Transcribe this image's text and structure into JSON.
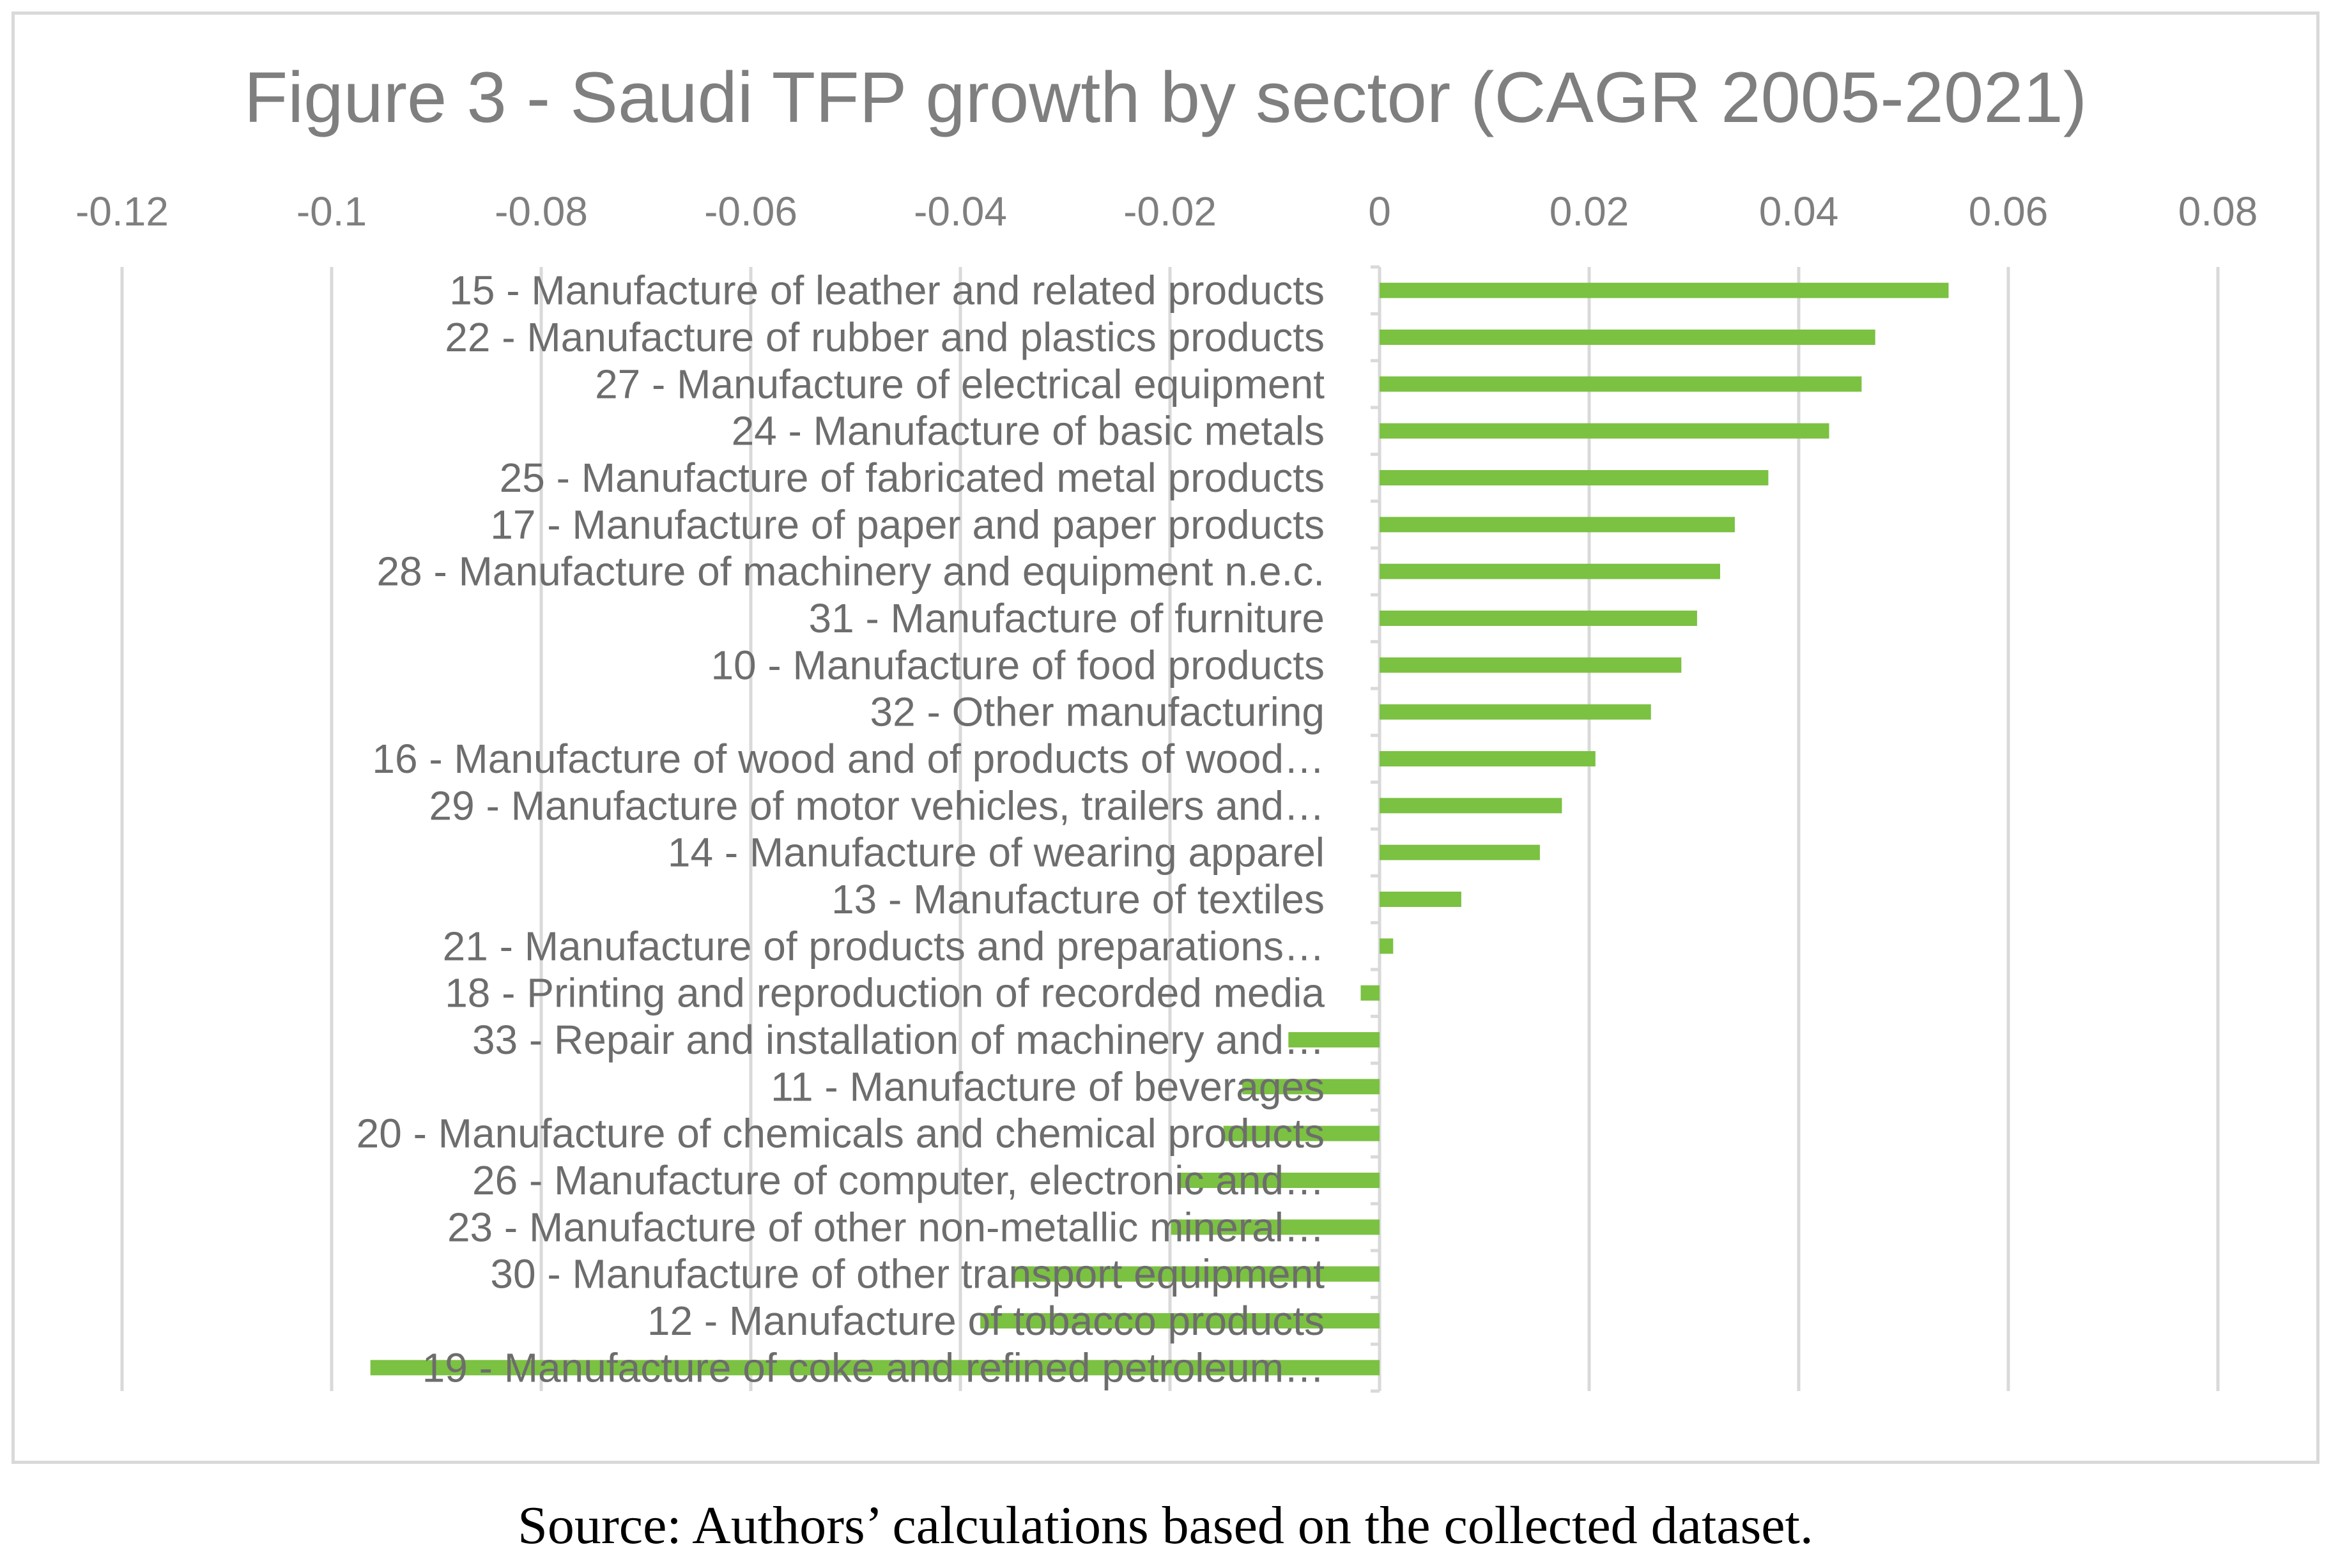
{
  "colors": {
    "bar": "#7bc142",
    "grid": "#d9d9d9",
    "text": "#7f7f7f"
  },
  "chart_data": {
    "type": "bar",
    "orientation": "horizontal",
    "title": "Figure 3 - Saudi TFP growth by sector (CAGR 2005-2021)",
    "xlim": [
      -0.12,
      0.08
    ],
    "x_ticks": [
      "-0.12",
      "-0.1",
      "-0.08",
      "-0.06",
      "-0.04",
      "-0.02",
      "0",
      "0.02",
      "0.04",
      "0.06",
      "0.08"
    ],
    "grid": true,
    "legend": "none",
    "categories": [
      "15 - Manufacture of leather and related products",
      "22 - Manufacture of rubber and plastics products",
      "27 - Manufacture of electrical equipment",
      "24 - Manufacture of basic metals",
      "25 - Manufacture of fabricated metal products",
      "17 - Manufacture of paper and paper products",
      "28 - Manufacture of machinery and equipment n.e.c.",
      "31 - Manufacture of furniture",
      "10 - Manufacture of food products",
      "32 - Other manufacturing",
      "16 - Manufacture of wood and of products of wood…",
      "29 - Manufacture of motor vehicles, trailers and…",
      "14 - Manufacture of wearing apparel",
      "13 - Manufacture of textiles",
      "21 - Manufacture of products and preparations…",
      "18 - Printing and reproduction of recorded media",
      "33 - Repair and installation of machinery and…",
      "11 - Manufacture of beverages",
      "20 - Manufacture of chemicals and chemical products",
      "26 - Manufacture of computer, electronic and…",
      "23 - Manufacture of other non-metallic mineral…",
      "30 - Manufacture of other transport equipment",
      "12 - Manufacture of tobacco products",
      "19 - Manufacture of coke and refined petroleum…"
    ],
    "values": [
      0.0543,
      0.0473,
      0.046,
      0.0429,
      0.0371,
      0.0339,
      0.0325,
      0.0303,
      0.0288,
      0.0259,
      0.0206,
      0.0174,
      0.0153,
      0.0078,
      0.0013,
      -0.0018,
      -0.0087,
      -0.0131,
      -0.0149,
      -0.0193,
      -0.0199,
      -0.0349,
      -0.0381,
      -0.0963
    ]
  },
  "source_note": "Source: Authors’ calculations based on the collected dataset."
}
